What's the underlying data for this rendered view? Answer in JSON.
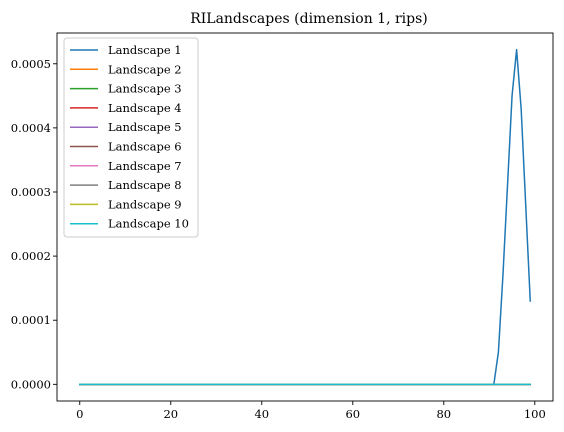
{
  "chart_data": {
    "type": "line",
    "title": "RILandscapes (dimension 1, rips)",
    "xlabel": "",
    "ylabel": "",
    "xlim": [
      -5,
      104
    ],
    "ylim": [
      -2.6e-05,
      0.000548
    ],
    "xticks": [
      0,
      20,
      40,
      60,
      80,
      100
    ],
    "xtick_labels": [
      "0",
      "20",
      "40",
      "60",
      "80",
      "100"
    ],
    "yticks": [
      0,
      0.0001,
      0.0002,
      0.0003,
      0.0004,
      0.0005
    ],
    "ytick_labels": [
      "0.0000",
      "0.0001",
      "0.0002",
      "0.0003",
      "0.0004",
      "0.0005"
    ],
    "grid": false,
    "legend_position": "upper-left",
    "series": [
      {
        "name": "Landscape 1",
        "color": "#1f77b4",
        "x": [
          0,
          91,
          92,
          93,
          94,
          95,
          96,
          97,
          98,
          99
        ],
        "y": [
          0,
          0,
          5e-05,
          0.00017,
          0.00031,
          0.00045,
          0.000522,
          0.00043,
          0.00028,
          0.00013
        ]
      },
      {
        "name": "Landscape 2",
        "color": "#ff7f0e",
        "x": [
          0,
          99
        ],
        "y": [
          0,
          0
        ]
      },
      {
        "name": "Landscape 3",
        "color": "#2ca02c",
        "x": [
          0,
          99
        ],
        "y": [
          0,
          0
        ]
      },
      {
        "name": "Landscape 4",
        "color": "#d62728",
        "x": [
          0,
          99
        ],
        "y": [
          0,
          0
        ]
      },
      {
        "name": "Landscape 5",
        "color": "#9467bd",
        "x": [
          0,
          99
        ],
        "y": [
          0,
          0
        ]
      },
      {
        "name": "Landscape 6",
        "color": "#8c564b",
        "x": [
          0,
          99
        ],
        "y": [
          0,
          0
        ]
      },
      {
        "name": "Landscape 7",
        "color": "#e377c2",
        "x": [
          0,
          99
        ],
        "y": [
          0,
          0
        ]
      },
      {
        "name": "Landscape 8",
        "color": "#7f7f7f",
        "x": [
          0,
          99
        ],
        "y": [
          0,
          0
        ]
      },
      {
        "name": "Landscape 9",
        "color": "#bcbd22",
        "x": [
          0,
          99
        ],
        "y": [
          0,
          0
        ]
      },
      {
        "name": "Landscape 10",
        "color": "#17becf",
        "x": [
          0,
          99
        ],
        "y": [
          0,
          0
        ]
      }
    ]
  }
}
